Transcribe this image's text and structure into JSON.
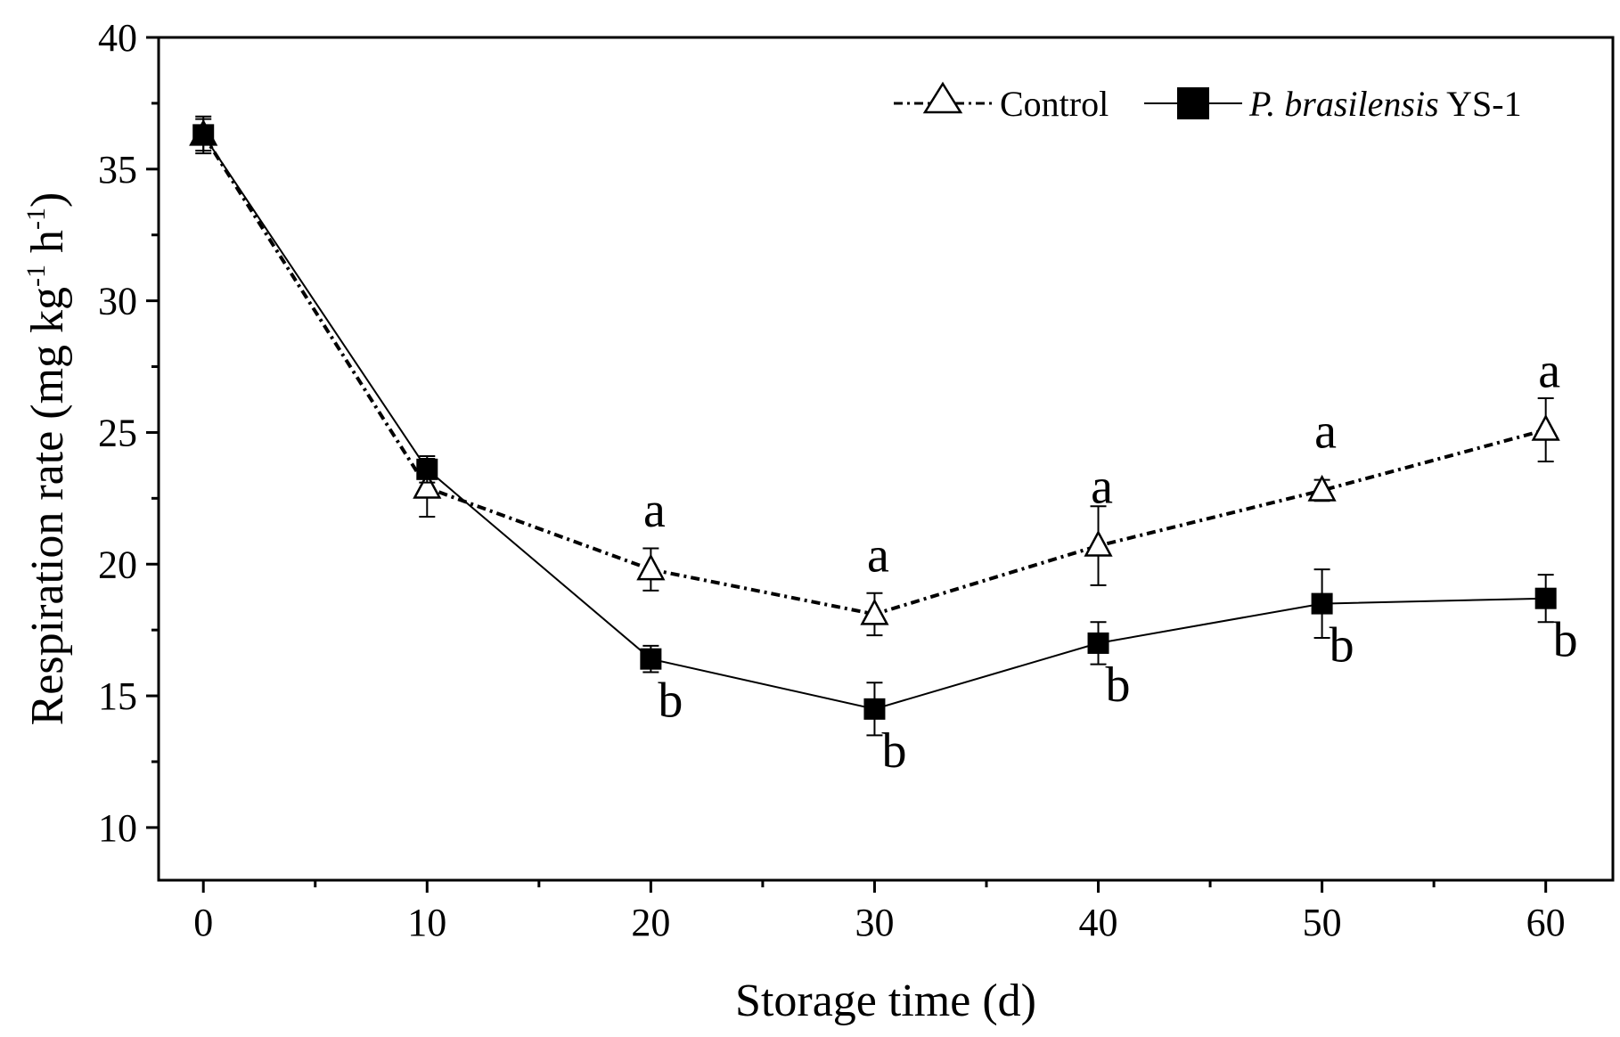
{
  "chart_data": {
    "type": "line",
    "title": "",
    "xlabel": "Storage time (d)",
    "ylabel": {
      "main": "Respiration rate (mg kg",
      "sup1": "-1",
      "mid": " h",
      "sup2": "-1",
      "end": ")"
    },
    "x": [
      0,
      10,
      20,
      30,
      40,
      50,
      60
    ],
    "xlim": [
      -2,
      63
    ],
    "ylim": [
      8,
      40
    ],
    "xticks": [
      0,
      10,
      20,
      30,
      40,
      50,
      60
    ],
    "yticks": [
      10,
      15,
      20,
      25,
      30,
      35,
      40
    ],
    "grid": false,
    "legend_position": "top-right",
    "series": [
      {
        "name": "Control",
        "marker": "open-triangle",
        "line": "dash-dot",
        "values": [
          36.3,
          22.9,
          19.8,
          18.1,
          20.7,
          22.8,
          25.1
        ],
        "errors": [
          0.6,
          1.1,
          0.8,
          0.8,
          1.5,
          0.4,
          1.2
        ],
        "sig_labels": [
          "",
          "",
          "a",
          "a",
          "a",
          "a",
          "a"
        ]
      },
      {
        "name_italic": "P. brasilensis",
        "name_rest": " YS-1",
        "marker": "filled-square",
        "line": "solid",
        "values": [
          36.3,
          23.6,
          16.4,
          14.5,
          17.0,
          18.5,
          18.7
        ],
        "errors": [
          0.7,
          0.5,
          0.5,
          1.0,
          0.8,
          1.3,
          0.9
        ],
        "sig_labels": [
          "",
          "",
          "b",
          "b",
          "b",
          "b",
          "b"
        ]
      }
    ]
  }
}
